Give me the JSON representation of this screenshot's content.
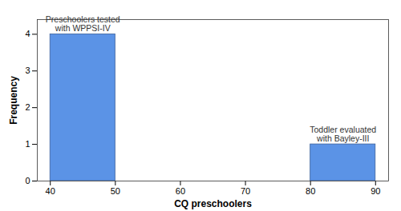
{
  "chart_data": {
    "type": "histogram",
    "x_label": "CQ preschoolers",
    "y_label": "Frequency",
    "bins": [
      40,
      50,
      60,
      70,
      80,
      90
    ],
    "values": [
      4,
      0,
      0,
      0,
      1
    ],
    "color": "#5b93e6",
    "xlim": [
      38,
      92
    ],
    "xticks": [
      40,
      50,
      60,
      70,
      80,
      90
    ],
    "ylim": [
      0,
      4.4
    ],
    "yticks": [
      0,
      1,
      2,
      3,
      4
    ],
    "grid": false,
    "annotations": [
      {
        "text": "Preschoolers tested with WPPSI-IV",
        "x": 45,
        "y": 4
      },
      {
        "text": "Toddler evaluated with Bayley-III",
        "x": 85,
        "y": 1
      }
    ]
  }
}
